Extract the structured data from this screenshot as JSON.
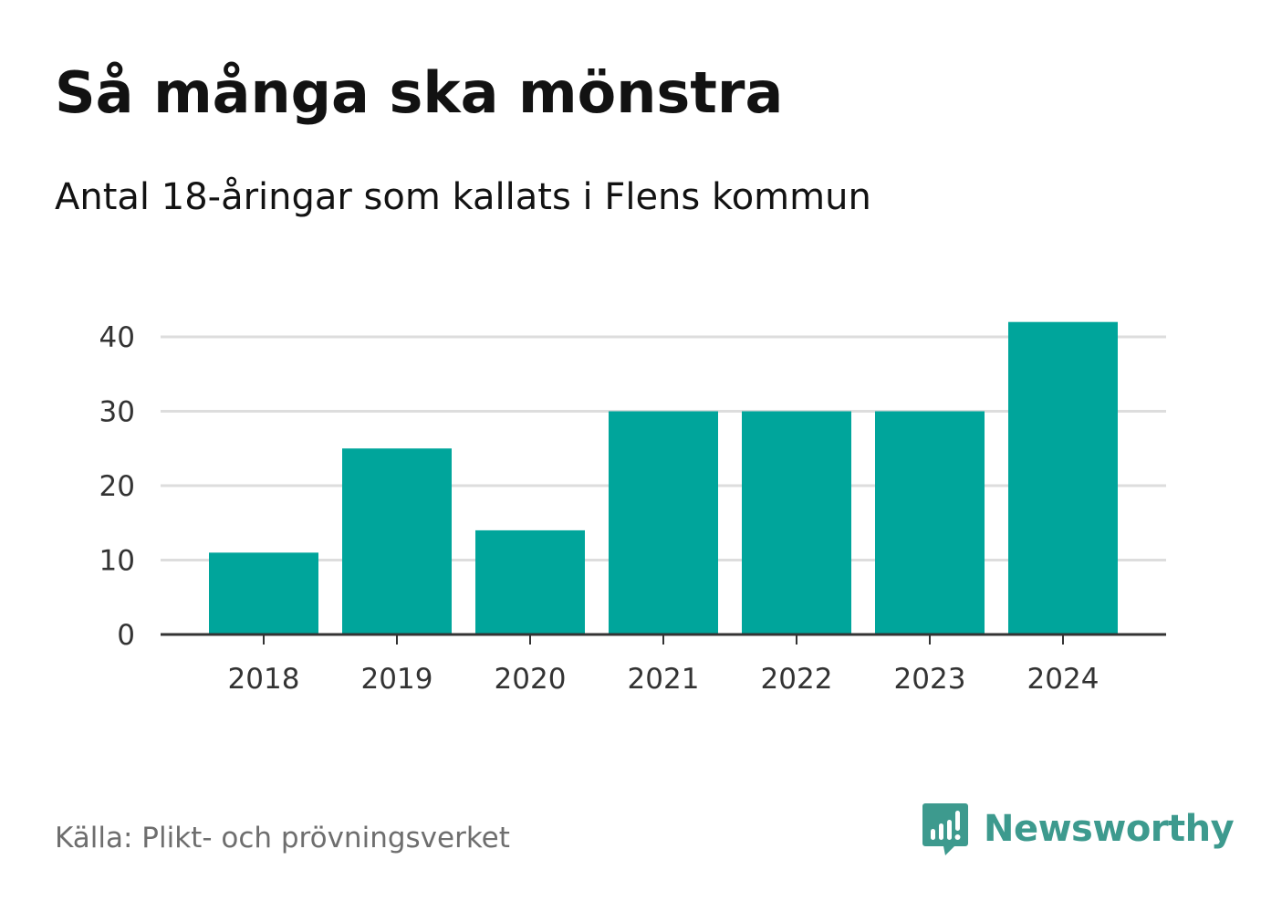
{
  "header": {
    "title": "Så många ska mönstra",
    "subtitle": "Antal 18-åringar som kallats i Flens kommun"
  },
  "footer": {
    "source": "Källa: Plikt- och prövningsverket",
    "brand": "Newsworthy",
    "brand_icon": "chart-bubble-icon"
  },
  "colors": {
    "bar": "#00a59b",
    "grid": "#dddddd",
    "axis": "#333333",
    "brand": "#3d9a8e"
  },
  "chart_data": {
    "type": "bar",
    "title": "Så många ska mönstra",
    "subtitle": "Antal 18-åringar som kallats i Flens kommun",
    "categories": [
      "2018",
      "2019",
      "2020",
      "2021",
      "2022",
      "2023",
      "2024"
    ],
    "values": [
      11,
      25,
      14,
      30,
      30,
      30,
      42
    ],
    "xlabel": "",
    "ylabel": "",
    "ylim": [
      0,
      42
    ],
    "yticks": [
      0,
      10,
      20,
      30,
      40
    ],
    "grid": true
  }
}
